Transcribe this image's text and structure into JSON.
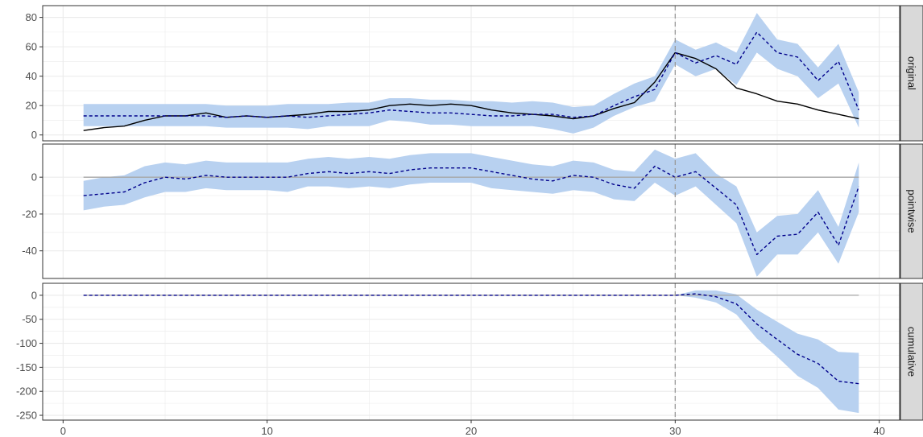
{
  "chart_data": {
    "type": "line",
    "x_axis": {
      "range": [
        -1,
        41
      ],
      "ticks": [
        0,
        10,
        20,
        30,
        40
      ],
      "tick_labels": [
        "0",
        "10",
        "20",
        "30",
        "40"
      ]
    },
    "intervention_x": 30,
    "grid": true,
    "colors": {
      "band": "#b8d1f0",
      "prediction": "#00008b",
      "actual": "#000000",
      "zero_line": "#a6a6a6",
      "intervention_line": "#999999",
      "strip_fill": "#d9d9d9",
      "grid": "#ebebeb"
    },
    "x": [
      1,
      2,
      3,
      4,
      5,
      6,
      7,
      8,
      9,
      10,
      11,
      12,
      13,
      14,
      15,
      16,
      17,
      18,
      19,
      20,
      21,
      22,
      23,
      24,
      25,
      26,
      27,
      28,
      29,
      30,
      31,
      32,
      33,
      34,
      35,
      36,
      37,
      38,
      39
    ],
    "panels": [
      {
        "strip": "original",
        "y_range": [
          -4,
          88
        ],
        "y_ticks": [
          0,
          20,
          40,
          60,
          80
        ],
        "y_tick_labels": [
          "0",
          "20",
          "40",
          "60",
          "80"
        ],
        "zero_line": false,
        "series": [
          {
            "role": "actual",
            "style": "solid",
            "values": [
              3,
              5,
              6,
              10,
              13,
              13,
              15,
              12,
              13,
              12,
              13,
              14,
              16,
              16,
              17,
              20,
              21,
              20,
              21,
              20,
              17,
              15,
              14,
              13,
              11,
              13,
              18,
              22,
              36,
              56,
              52,
              45,
              32,
              28,
              23,
              21,
              17,
              14,
              11
            ]
          },
          {
            "role": "predicted",
            "style": "dashed",
            "values": [
              13,
              13,
              13,
              13,
              13,
              13,
              13,
              12,
              13,
              12,
              13,
              12,
              13,
              14,
              15,
              17,
              16,
              15,
              15,
              14,
              13,
              13,
              14,
              14,
              12,
              13,
              20,
              26,
              31,
              56,
              49,
              54,
              48,
              70,
              56,
              53,
              37,
              50,
              17
            ]
          }
        ],
        "band_lower": [
          6,
          6,
          6,
          6,
          6,
          6,
          6,
          5,
          5,
          5,
          5,
          4,
          6,
          6,
          6,
          10,
          9,
          7,
          7,
          6,
          6,
          6,
          6,
          4,
          1,
          5,
          13,
          19,
          23,
          48,
          40,
          45,
          34,
          56,
          45,
          40,
          25,
          35,
          5
        ],
        "band_upper": [
          21,
          21,
          21,
          21,
          21,
          21,
          21,
          20,
          20,
          20,
          21,
          21,
          21,
          22,
          22,
          25,
          25,
          24,
          24,
          23,
          23,
          22,
          23,
          22,
          19,
          20,
          28,
          35,
          40,
          65,
          58,
          63,
          56,
          83,
          65,
          62,
          46,
          62,
          29
        ]
      },
      {
        "strip": "pointwise",
        "y_range": [
          -55,
          18
        ],
        "y_ticks": [
          -40,
          -20,
          0
        ],
        "y_tick_labels": [
          "-40",
          "-20",
          "0"
        ],
        "zero_line": true,
        "series": [
          {
            "role": "predicted",
            "style": "dashed",
            "values": [
              -10,
              -9,
              -8,
              -3,
              0,
              -1,
              1,
              0,
              0,
              0,
              0,
              2,
              3,
              2,
              3,
              2,
              4,
              5,
              5,
              5,
              3,
              1,
              -1,
              -2,
              1,
              0,
              -4,
              -6,
              6,
              0,
              3,
              -6,
              -15,
              -42,
              -32,
              -31,
              -19,
              -37,
              -5
            ]
          }
        ],
        "band_lower": [
          -18,
          -16,
          -15,
          -11,
          -8,
          -8,
          -6,
          -7,
          -7,
          -7,
          -8,
          -5,
          -5,
          -6,
          -5,
          -6,
          -4,
          -3,
          -3,
          -3,
          -6,
          -7,
          -8,
          -9,
          -7,
          -8,
          -12,
          -13,
          -3,
          -10,
          -5,
          -15,
          -25,
          -54,
          -42,
          -42,
          -30,
          -47,
          -19
        ],
        "band_upper": [
          -2,
          0,
          1,
          6,
          8,
          7,
          9,
          8,
          8,
          8,
          8,
          10,
          11,
          10,
          11,
          10,
          12,
          13,
          13,
          13,
          11,
          9,
          7,
          6,
          9,
          8,
          4,
          3,
          15,
          10,
          13,
          2,
          -5,
          -30,
          -21,
          -20,
          -7,
          -27,
          8
        ]
      },
      {
        "strip": "cumulative",
        "y_range": [
          -260,
          25
        ],
        "y_ticks": [
          -250,
          -200,
          -150,
          -100,
          -50,
          0
        ],
        "y_tick_labels": [
          "-250",
          "-200",
          "-150",
          "-100",
          "-50",
          "0"
        ],
        "zero_line": true,
        "series": [
          {
            "role": "predicted",
            "style": "dashed",
            "values": [
              0,
              0,
              0,
              0,
              0,
              0,
              0,
              0,
              0,
              0,
              0,
              0,
              0,
              0,
              0,
              0,
              0,
              0,
              0,
              0,
              0,
              0,
              0,
              0,
              0,
              0,
              0,
              0,
              0,
              0,
              3,
              -3,
              -18,
              -60,
              -92,
              -123,
              -142,
              -179,
              -184
            ]
          }
        ],
        "band_lower": [
          0,
          0,
          0,
          0,
          0,
          0,
          0,
          0,
          0,
          0,
          0,
          0,
          0,
          0,
          0,
          0,
          0,
          0,
          0,
          0,
          0,
          0,
          0,
          0,
          0,
          0,
          0,
          0,
          0,
          0,
          -5,
          -15,
          -40,
          -90,
          -128,
          -168,
          -193,
          -238,
          -245
        ],
        "band_upper": [
          0,
          0,
          0,
          0,
          0,
          0,
          0,
          0,
          0,
          0,
          0,
          0,
          0,
          0,
          0,
          0,
          0,
          0,
          0,
          0,
          0,
          0,
          0,
          0,
          0,
          0,
          0,
          0,
          0,
          0,
          10,
          10,
          2,
          -30,
          -55,
          -80,
          -92,
          -118,
          -120
        ]
      }
    ]
  }
}
